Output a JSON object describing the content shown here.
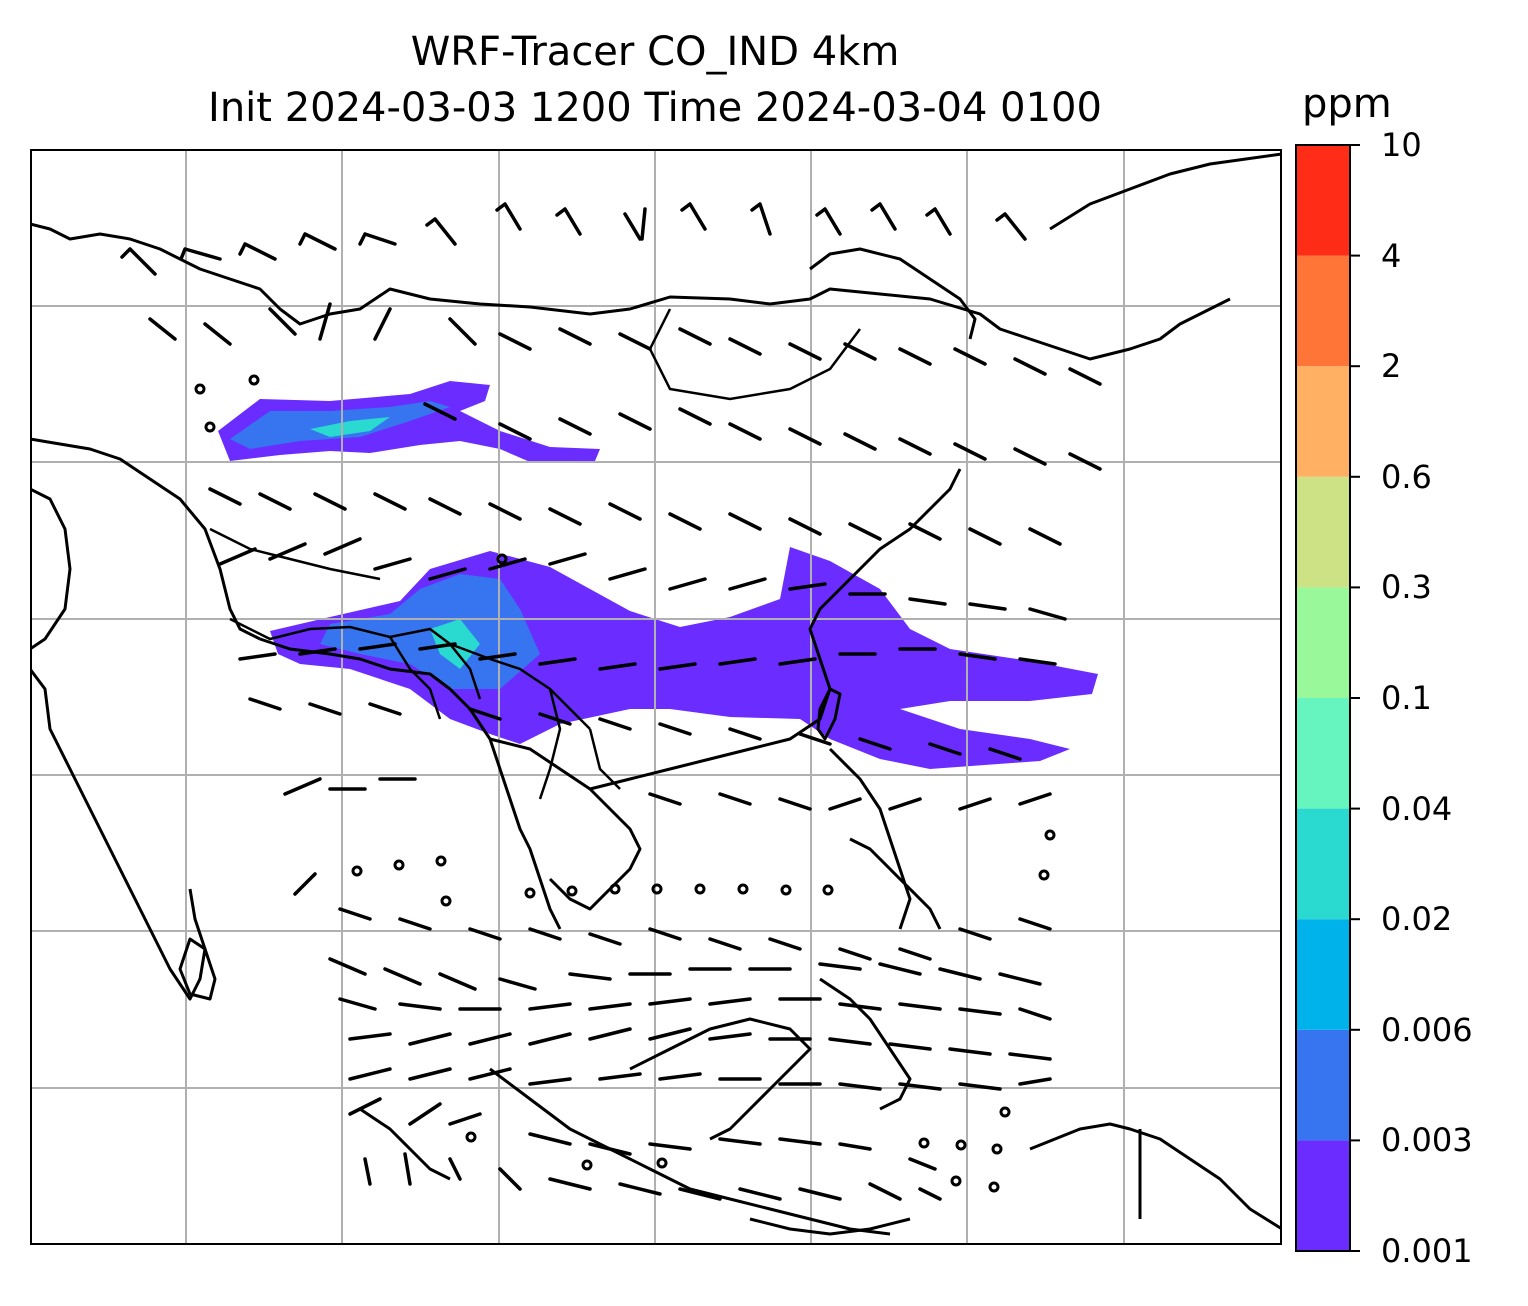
{
  "title_line1": "WRF-Tracer CO_IND 4km",
  "title_line2": "Init 2024-03-03 1200 Time 2024-03-04 0100",
  "colorbar": {
    "unit": "ppm",
    "levels": [
      "0.001",
      "0.003",
      "0.006",
      "0.02",
      "0.04",
      "0.1",
      "0.3",
      "0.6",
      "2",
      "4",
      "10"
    ],
    "colors": [
      "#6a2cff",
      "#3674f0",
      "#00b2ea",
      "#2ad9d0",
      "#66f5be",
      "#99f89a",
      "#cde185",
      "#ffb062",
      "#ff7538",
      "#ff2d18"
    ]
  },
  "map": {
    "projection": "map with lat/lon gridlines, coastlines, country borders",
    "field": "CO_IND tracer concentration (filled contours)",
    "overlay": "wind barbs",
    "plume_colors": [
      "#6a2cff",
      "#3674f0",
      "#2ad9d0"
    ]
  }
}
